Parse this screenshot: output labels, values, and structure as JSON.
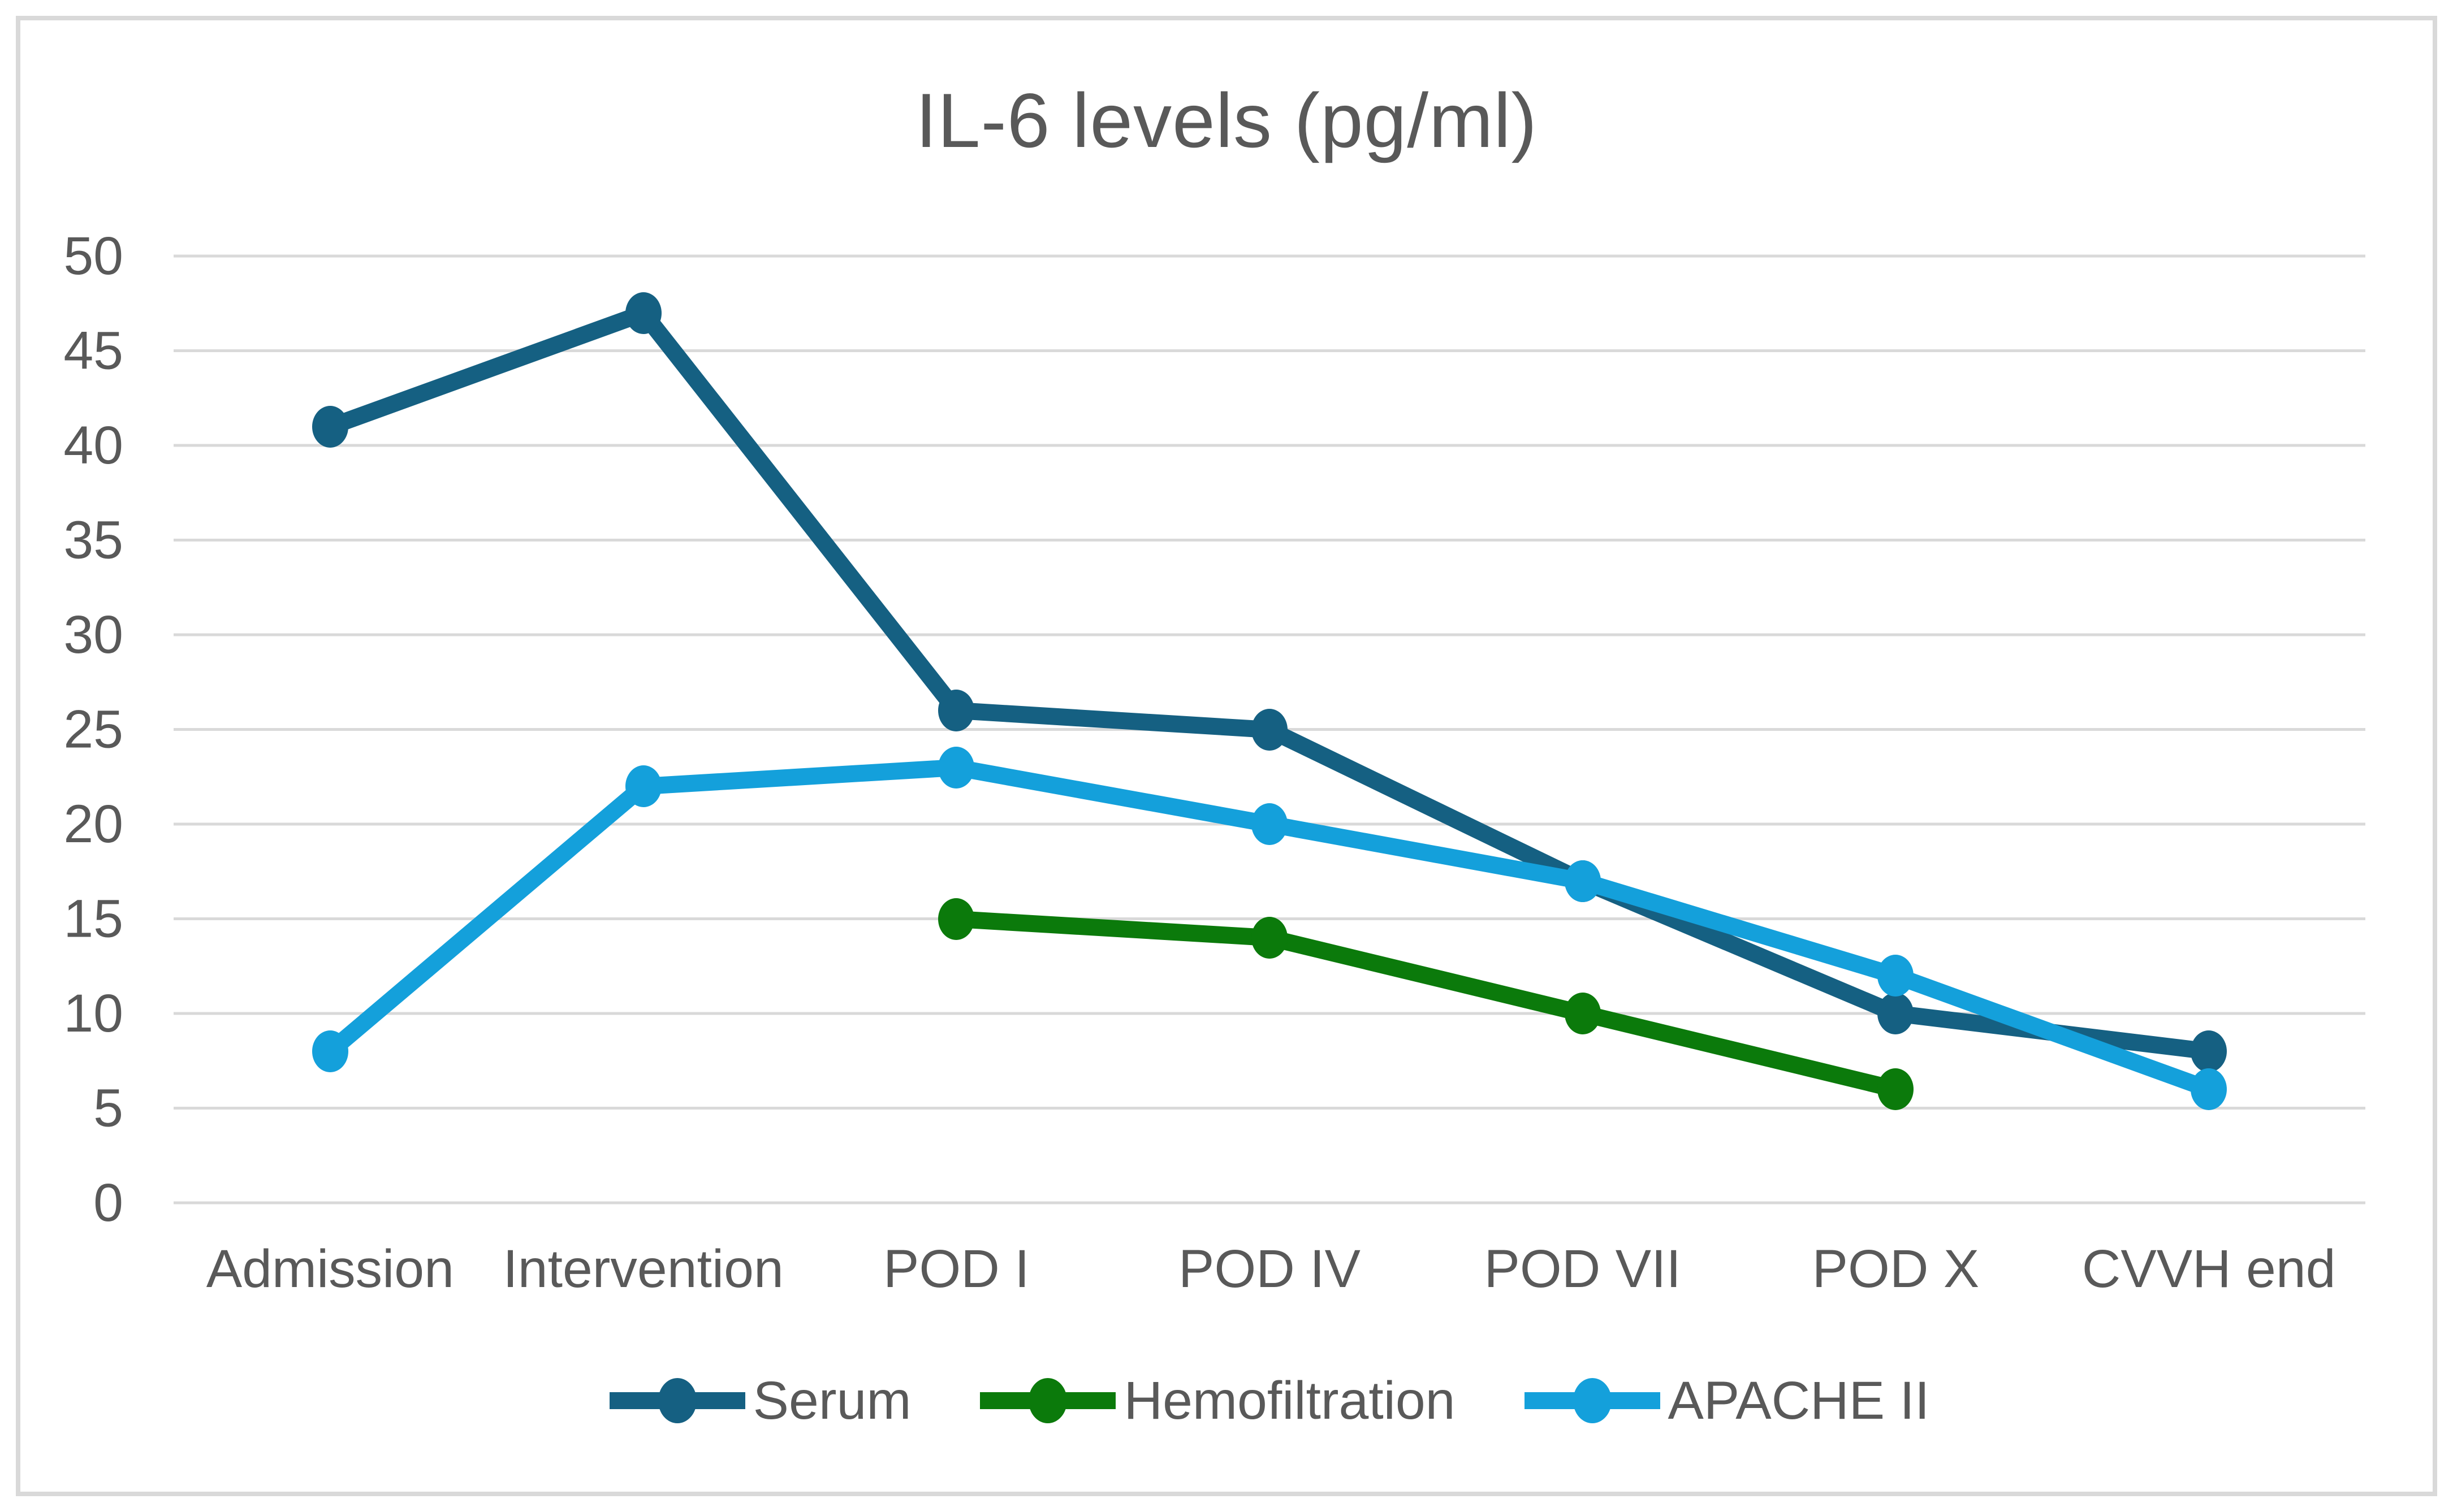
{
  "window": {
    "background": "#FFFFFF",
    "frame_border_color": "#D9D9D9"
  },
  "chart_data": {
    "type": "line",
    "title": "IL-6 levels (pg/ml)",
    "categories": [
      "Admission",
      "Intervention",
      "POD I",
      "POD IV",
      "POD VII",
      "POD X",
      "CVVH end"
    ],
    "series": [
      {
        "name": "Serum",
        "color": "#156082",
        "values": [
          41,
          47,
          26,
          25,
          17,
          10,
          8
        ]
      },
      {
        "name": "Hemofiltration",
        "color": "#0B7A0B",
        "values": [
          null,
          null,
          15,
          14,
          10,
          6,
          null
        ]
      },
      {
        "name": "APACHE II",
        "color": "#14A0DB",
        "values": [
          8,
          22,
          23,
          20,
          17,
          12,
          6
        ]
      }
    ],
    "ylim": [
      0,
      50
    ],
    "ytick_step": 5,
    "yticks": [
      0,
      5,
      10,
      15,
      20,
      25,
      30,
      35,
      40,
      45,
      50
    ],
    "grid": "horizontal",
    "legend_position": "bottom",
    "text_color": "#595959",
    "gridline_color": "#D9D9D9"
  }
}
